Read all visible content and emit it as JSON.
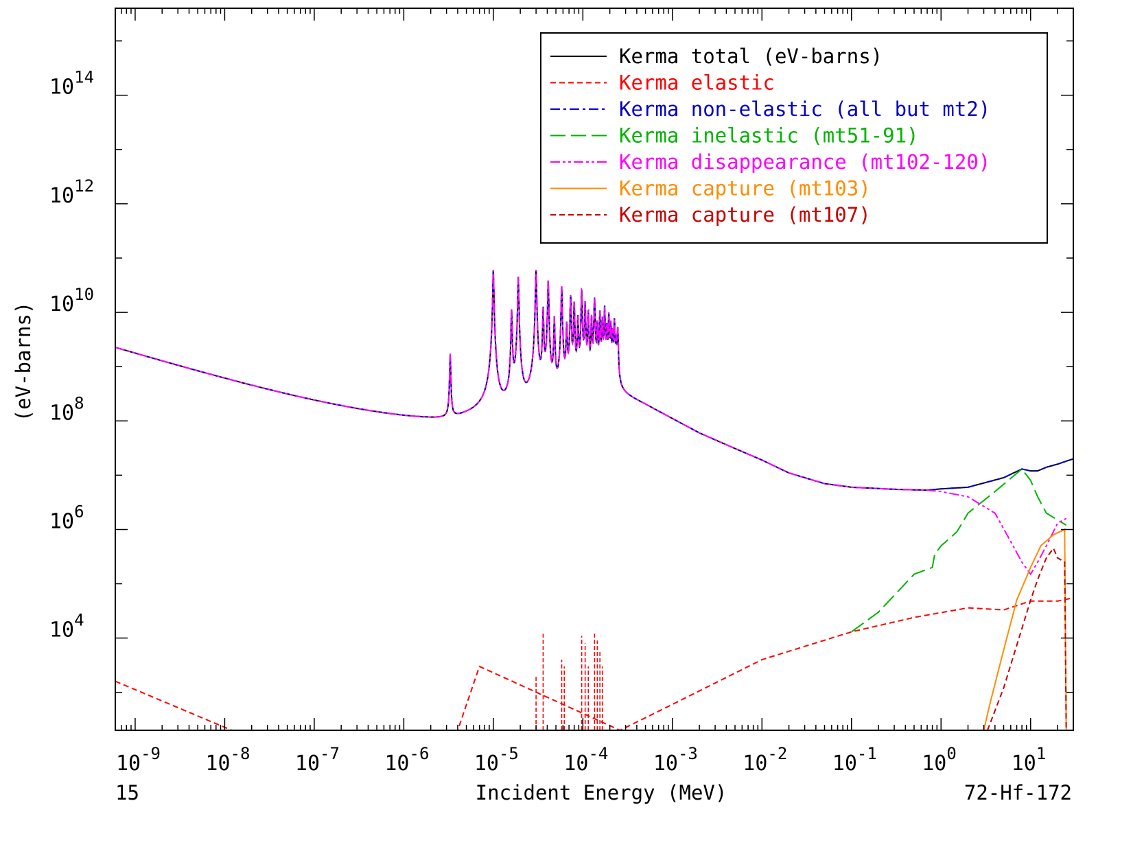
{
  "chart_data": {
    "type": "line",
    "title": "",
    "xlabel": "Incident Energy (MeV)",
    "ylabel": "(eV-barns)",
    "x_scale": "log",
    "y_scale": "log",
    "xlim": [
      6e-10,
      30
    ],
    "ylim": [
      200,
      4000000000000000.0
    ],
    "x_ticks": [
      {
        "value": 1e-09,
        "base": "10",
        "exp": "-9"
      },
      {
        "value": 1e-08,
        "base": "10",
        "exp": "-8"
      },
      {
        "value": 1e-07,
        "base": "10",
        "exp": "-7"
      },
      {
        "value": 1e-06,
        "base": "10",
        "exp": "-6"
      },
      {
        "value": 1e-05,
        "base": "10",
        "exp": "-5"
      },
      {
        "value": 0.0001,
        "base": "10",
        "exp": "-4"
      },
      {
        "value": 0.001,
        "base": "10",
        "exp": "-3"
      },
      {
        "value": 0.01,
        "base": "10",
        "exp": "-2"
      },
      {
        "value": 0.1,
        "base": "10",
        "exp": "-1"
      },
      {
        "value": 1,
        "base": "10",
        "exp": "0"
      },
      {
        "value": 10,
        "base": "10",
        "exp": "1"
      }
    ],
    "y_ticks": [
      {
        "value": 10000.0,
        "base": "10",
        "exp": "4"
      },
      {
        "value": 1000000.0,
        "base": "10",
        "exp": "6"
      },
      {
        "value": 100000000.0,
        "base": "10",
        "exp": "8"
      },
      {
        "value": 10000000000.0,
        "base": "10",
        "exp": "10"
      },
      {
        "value": 1000000000000.0,
        "base": "10",
        "exp": "12"
      },
      {
        "value": 100000000000000.0,
        "base": "10",
        "exp": "14"
      }
    ],
    "legend_position": "top-right",
    "grid": false,
    "corner_left": "15",
    "corner_right": "72-Hf-172",
    "resonances": [
      {
        "e": 3.3e-06,
        "peak": 1600000000.0
      },
      {
        "e": 1e-05,
        "peak": 60000000000.0
      },
      {
        "e": 1.6e-05,
        "peak": 11000000000.0
      },
      {
        "e": 1.9e-05,
        "peak": 45000000000.0
      },
      {
        "e": 3e-05,
        "peak": 60000000000.0
      },
      {
        "e": 3.6e-05,
        "peak": 12000000000.0
      },
      {
        "e": 4.1e-05,
        "peak": 38000000000.0
      },
      {
        "e": 4.8e-05,
        "peak": 8000000000.0
      },
      {
        "e": 5.8e-05,
        "peak": 30000000000.0
      },
      {
        "e": 6.6e-05,
        "peak": 6000000000.0
      },
      {
        "e": 7.3e-05,
        "peak": 20000000000.0
      },
      {
        "e": 8e-05,
        "peak": 15000000000.0
      },
      {
        "e": 8.8e-05,
        "peak": 8000000000.0
      },
      {
        "e": 9.7e-05,
        "peak": 25000000000.0
      },
      {
        "e": 0.000106,
        "peak": 15000000000.0
      },
      {
        "e": 0.000115,
        "peak": 10000000000.0
      },
      {
        "e": 0.000125,
        "peak": 8000000000.0
      },
      {
        "e": 0.000135,
        "peak": 18000000000.0
      },
      {
        "e": 0.000145,
        "peak": 6000000000.0
      },
      {
        "e": 0.000155,
        "peak": 10000000000.0
      },
      {
        "e": 0.000165,
        "peak": 7000000000.0
      },
      {
        "e": 0.000175,
        "peak": 12000000000.0
      },
      {
        "e": 0.000185,
        "peak": 5000000000.0
      },
      {
        "e": 0.000195,
        "peak": 9000000000.0
      },
      {
        "e": 0.000205,
        "peak": 6000000000.0
      },
      {
        "e": 0.000215,
        "peak": 4000000000.0
      },
      {
        "e": 0.000225,
        "peak": 7000000000.0
      },
      {
        "e": 0.000235,
        "peak": 3000000000.0
      },
      {
        "e": 0.000245,
        "peak": 5000000000.0
      }
    ],
    "series": [
      {
        "name": "Kerma total  (eV-barns)",
        "color": "#000000",
        "style": "solid",
        "x": [
          6e-10,
          3e-06,
          0.00026,
          0.0005,
          0.001,
          0.002,
          0.005,
          0.01,
          0.02,
          0.05,
          0.1,
          0.3,
          0.7,
          1.0,
          2.0,
          5.0,
          8.0,
          10.0,
          12.0,
          15.0,
          20.0,
          30.0
        ],
        "y": [
          2200000000.0,
          33000000.0,
          330000000.0,
          200000000.0,
          110000000.0,
          60000000.0,
          31000000.0,
          19000000.0,
          11000000.0,
          7000000.0,
          6000000.0,
          5500000.0,
          5300000.0,
          5600000.0,
          6000000.0,
          9000000.0,
          13000000.0,
          12000000.0,
          12000000.0,
          14000000.0,
          16000000.0,
          20000000.0
        ]
      },
      {
        "name": "Kerma elastic",
        "color": "#ff0000",
        "style": "dashed",
        "x": [
          6e-10,
          1.2e-08,
          4e-06,
          7e-06,
          0.00026,
          0.001,
          0.01,
          0.1,
          0.5,
          2.0,
          5.0,
          10.0,
          20.0,
          30.0
        ],
        "y": [
          1600.0,
          200,
          200,
          3000.0,
          200,
          600,
          4000.0,
          13000.0,
          24000.0,
          36000.0,
          33000.0,
          48000.0,
          48000.0,
          55000.0
        ]
      },
      {
        "name": "Kerma non-elastic (all but mt2)",
        "color": "#0000c8",
        "style": "dashdot",
        "x": [
          6e-10,
          3e-06,
          0.00026,
          0.0005,
          0.001,
          0.002,
          0.005,
          0.01,
          0.02,
          0.05,
          0.1,
          0.3,
          0.7,
          1.0,
          2.0,
          5.0,
          8.0,
          10.0,
          12.0,
          15.0,
          20.0,
          30.0
        ],
        "y": [
          2200000000.0,
          33000000.0,
          330000000.0,
          200000000.0,
          110000000.0,
          60000000.0,
          31000000.0,
          19000000.0,
          11000000.0,
          7000000.0,
          6000000.0,
          5500000.0,
          5300000.0,
          5600000.0,
          6000000.0,
          9000000.0,
          13000000.0,
          12000000.0,
          12000000.0,
          14000000.0,
          16000000.0,
          20000000.0
        ]
      },
      {
        "name": "Kerma inelastic (mt51-91)",
        "color": "#00b400",
        "style": "longdash",
        "x": [
          0.1,
          0.2,
          0.5,
          0.8,
          0.85,
          1.0,
          1.5,
          2.0,
          4.0,
          8.0,
          10.0,
          12.0,
          15.0,
          20.0,
          25.0
        ],
        "y": [
          13000.0,
          30000.0,
          150000.0,
          200000.0,
          350000.0,
          500000.0,
          900000.0,
          2000000.0,
          5000000.0,
          13000000.0,
          8000000.0,
          4000000.0,
          2000000.0,
          1500000.0,
          1200000.0
        ]
      },
      {
        "name": "Kerma disappearance (mt102-120)",
        "color": "#ff00ff",
        "style": "dashdotdot",
        "x": [
          6e-10,
          3e-06,
          0.00026,
          0.0005,
          0.001,
          0.002,
          0.005,
          0.01,
          0.02,
          0.05,
          0.1,
          0.3,
          0.7,
          1.0,
          2.0,
          4.0,
          6.0,
          8.0,
          10.0,
          12.0,
          15.0,
          20.0,
          25.0
        ],
        "y": [
          2200000000.0,
          33000000.0,
          330000000.0,
          200000000.0,
          110000000.0,
          60000000.0,
          31000000.0,
          19000000.0,
          11000000.0,
          7000000.0,
          6000000.0,
          5500000.0,
          5300000.0,
          5000000.0,
          4000000.0,
          2000000.0,
          600000.0,
          250000.0,
          150000.0,
          250000.0,
          500000.0,
          1300000.0,
          1600000.0
        ]
      },
      {
        "name": "Kerma capture (mt103)",
        "color": "#ff8c00",
        "style": "solid",
        "x": [
          3.0,
          3.5,
          5.0,
          7.0,
          10.0,
          13.0,
          18.0,
          24.0,
          25.0
        ],
        "y": [
          200,
          600,
          6000.0,
          50000.0,
          200000.0,
          500000.0,
          800000.0,
          1000000.0,
          200
        ]
      },
      {
        "name": "Kerma capture (mt107)",
        "color": "#c80000",
        "style": "dashed",
        "x": [
          3.3,
          5.0,
          8.0,
          10.0,
          12.0,
          15.0,
          18.0,
          20.0,
          24.0,
          25.0
        ],
        "y": [
          200,
          1200.0,
          15000.0,
          50000.0,
          120000.0,
          300000.0,
          450000.0,
          300000.0,
          250000.0,
          200
        ]
      }
    ]
  }
}
